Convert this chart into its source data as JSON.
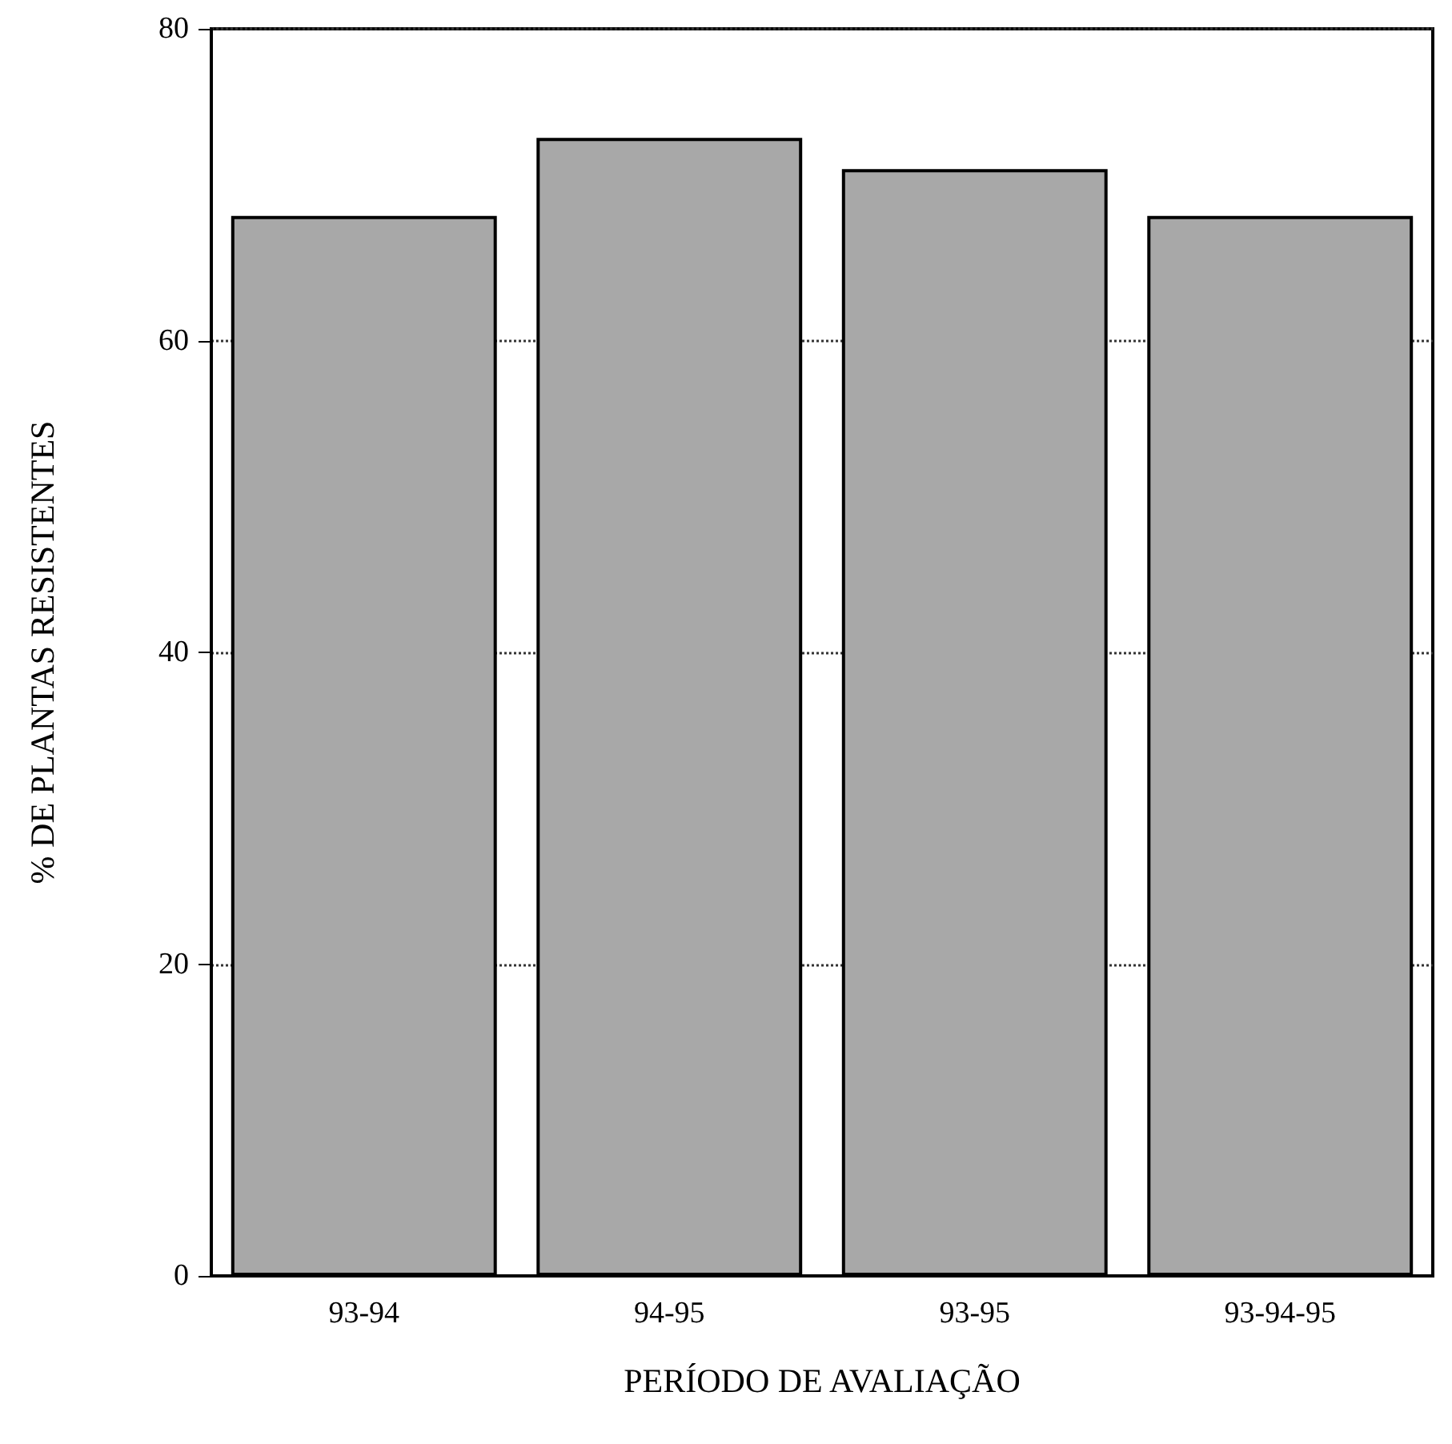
{
  "chart_data": {
    "type": "bar",
    "xlabel": "PERÍODO DE AVALIAÇÃO",
    "ylabel": "% DE PLANTAS RESISTENTES",
    "categories": [
      "93-94",
      "94-95",
      "93-95",
      "93-94-95"
    ],
    "values": [
      68,
      73,
      71,
      68
    ],
    "color": "#a8a8a8",
    "ylim": [
      0,
      80
    ],
    "yticks": [
      0,
      20,
      40,
      60,
      80
    ],
    "grid": "y"
  }
}
